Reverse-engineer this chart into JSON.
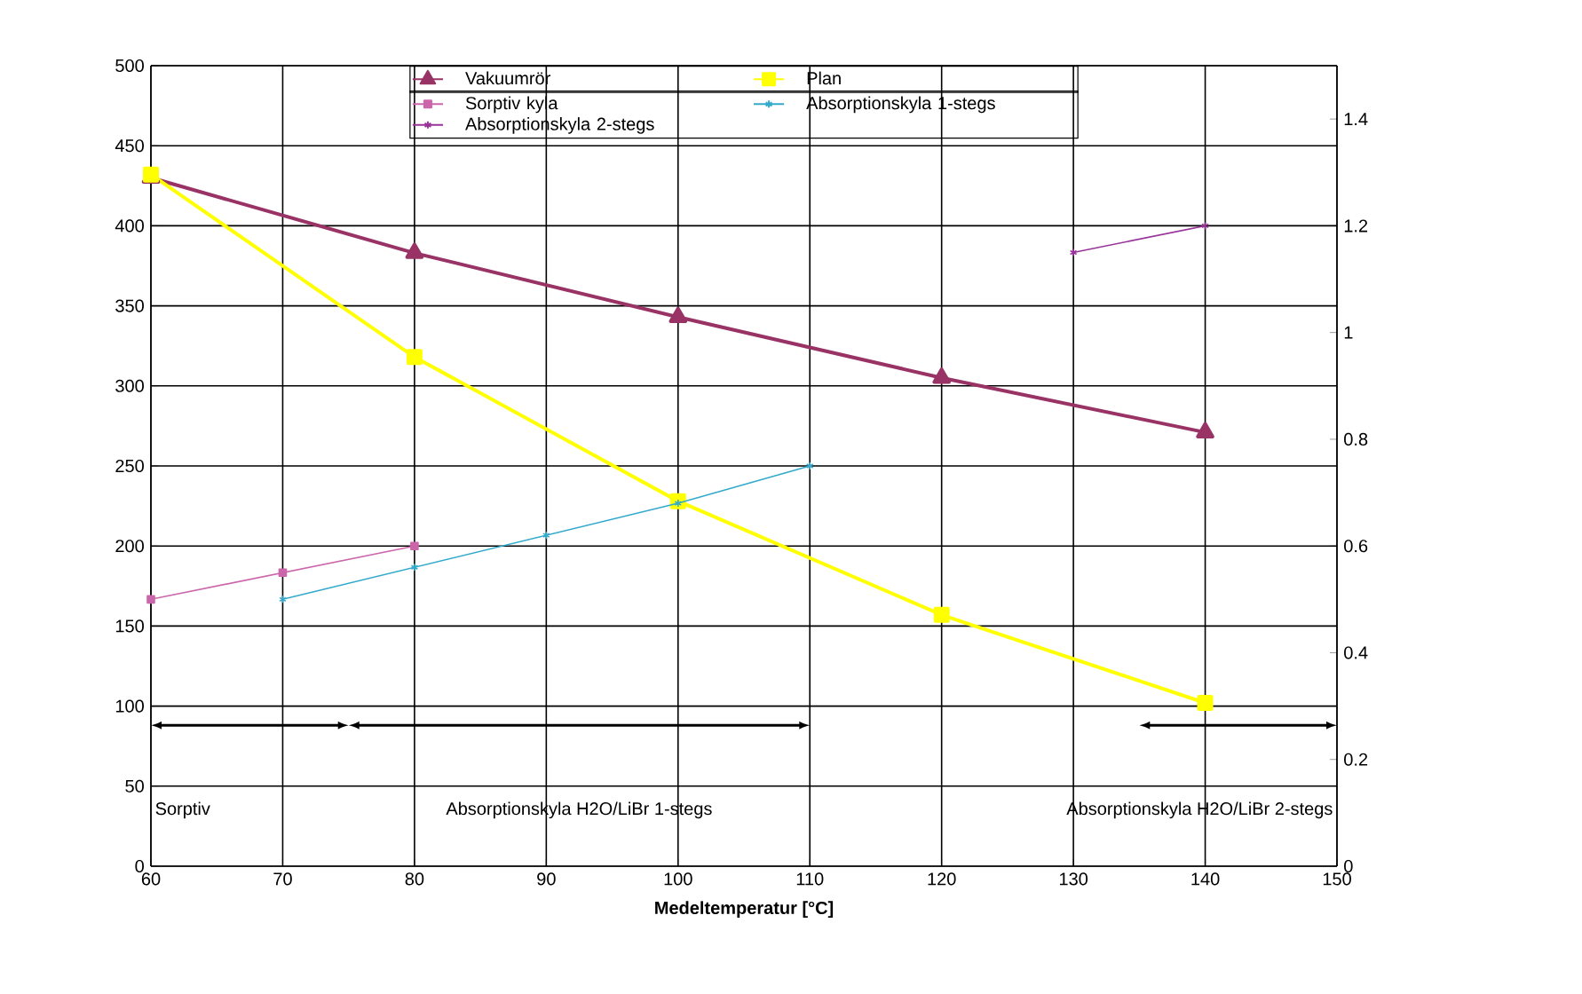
{
  "chart_data": {
    "type": "line",
    "xlabel": "Medeltemperatur [°C]",
    "xlim": [
      60,
      150
    ],
    "xticks": [
      60,
      70,
      80,
      90,
      100,
      110,
      120,
      130,
      140,
      150
    ],
    "ylim": [
      0,
      500
    ],
    "yticks": [
      0,
      50,
      100,
      150,
      200,
      250,
      300,
      350,
      400,
      450,
      500
    ],
    "y2lim": [
      0,
      1.5
    ],
    "y2ticks": [
      0,
      0.2,
      0.4,
      0.6,
      0.8,
      1,
      1.2,
      1.4
    ],
    "grid": true,
    "legend": "top",
    "series": [
      {
        "name": "Vakuumrör",
        "color": "#993366",
        "marker": "triangle",
        "axis": "y",
        "x": [
          60,
          80,
          100,
          120,
          140
        ],
        "values": [
          430,
          383,
          343,
          305,
          271
        ]
      },
      {
        "name": "Plan",
        "color": "#ffff00",
        "marker": "square",
        "axis": "y",
        "x": [
          60,
          80,
          100,
          120,
          140
        ],
        "values": [
          432,
          318,
          228,
          157,
          102
        ]
      },
      {
        "name": "Sorptiv kyla",
        "color": "#cc66aa",
        "marker": "square",
        "axis": "y2",
        "x": [
          60,
          70,
          80
        ],
        "values": [
          0.5,
          0.55,
          0.6
        ]
      },
      {
        "name": "Absorptionskyla 1-stegs",
        "color": "#33aacc",
        "marker": "cross",
        "axis": "y2",
        "x": [
          70,
          80,
          90,
          100,
          110
        ],
        "values": [
          0.5,
          0.56,
          0.62,
          0.68,
          0.75
        ]
      },
      {
        "name": "Absorptionskyla 2-stegs",
        "color": "#993399",
        "marker": "cross",
        "line_style": "solid",
        "axis": "y2",
        "x": [
          130,
          140
        ],
        "values": [
          1.15,
          1.2
        ]
      }
    ],
    "annotations": [
      "Sorptiv",
      "Absorptionskyla H2O/LiBr 1-stegs",
      "Absorptionskyla H2O/LiBr 2-stegs"
    ]
  }
}
